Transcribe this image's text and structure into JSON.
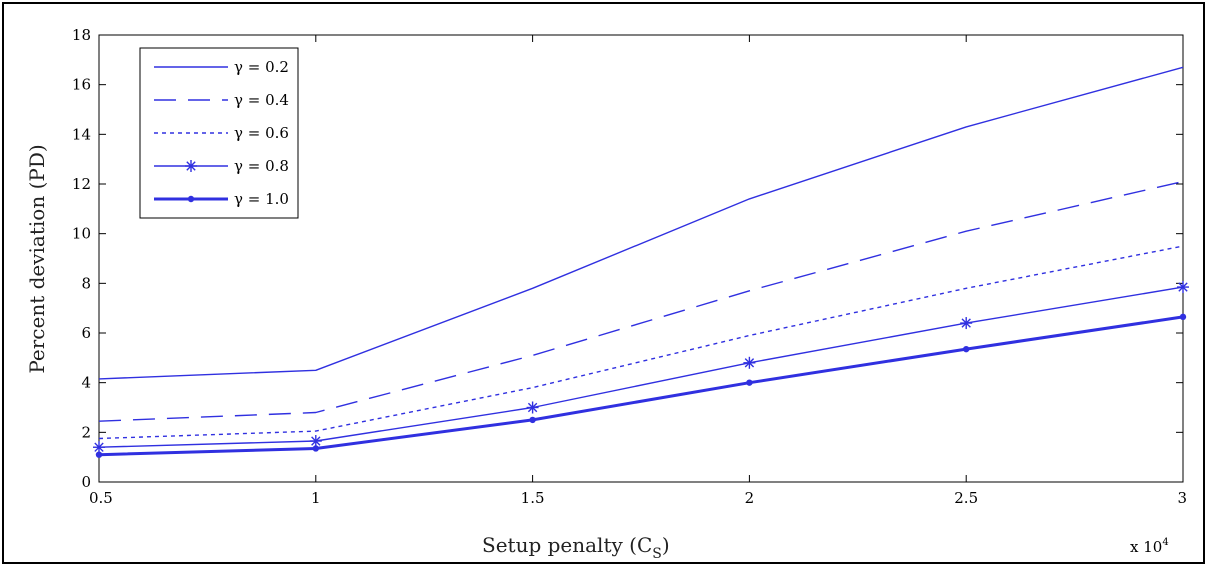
{
  "chart_data": {
    "type": "line",
    "xlabel": "Setup penalty (C",
    "xlabel_sub": "S",
    "xlabel_close": ")",
    "ylabel": "Percent deviation (PD)",
    "x_multiplier": "x 10",
    "x_multiplier_exp": "4",
    "x": [
      5000,
      10000,
      15000,
      20000,
      25000,
      30000
    ],
    "xlim": [
      5000,
      30000
    ],
    "ylim": [
      0,
      18
    ],
    "x_ticks": [
      "0.5",
      "1",
      "1.5",
      "2",
      "2.5",
      "3"
    ],
    "y_ticks": [
      "0",
      "2",
      "4",
      "6",
      "8",
      "10",
      "12",
      "14",
      "16",
      "18"
    ],
    "grid": false,
    "legend_position": "top-left",
    "line_color": "#3030e0",
    "series": [
      {
        "name": "γ = 0.2",
        "values": [
          4.15,
          4.5,
          7.8,
          11.4,
          14.3,
          16.7
        ],
        "style": "solid"
      },
      {
        "name": "γ = 0.4",
        "values": [
          2.45,
          2.8,
          5.1,
          7.7,
          10.1,
          12.1
        ],
        "style": "dashed"
      },
      {
        "name": "γ = 0.6",
        "values": [
          1.75,
          2.05,
          3.8,
          5.9,
          7.8,
          9.5
        ],
        "style": "dotted"
      },
      {
        "name": "γ = 0.8",
        "values": [
          1.4,
          1.65,
          3.0,
          4.8,
          6.4,
          7.85
        ],
        "style": "star"
      },
      {
        "name": "γ = 1.0",
        "values": [
          1.1,
          1.35,
          2.5,
          4.0,
          5.35,
          6.65
        ],
        "style": "bold"
      }
    ]
  }
}
